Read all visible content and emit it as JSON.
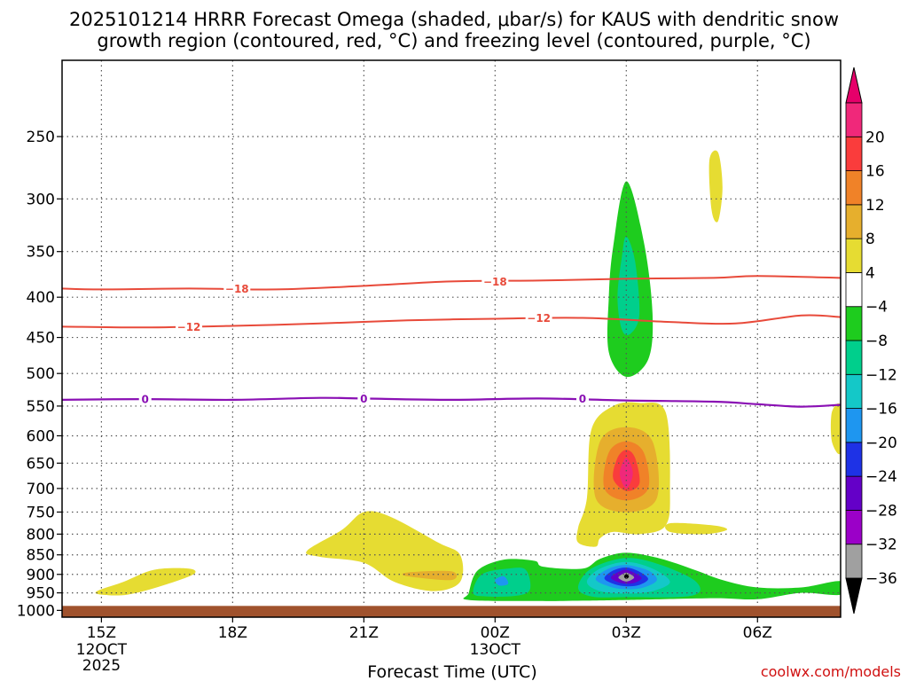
{
  "chart_data": {
    "type": "contour",
    "title_line1": "2025101214 HRRR Forecast Omega (shaded, μbar/s) for KAUS with dendritic snow",
    "title_line2": "growth region (contoured, red, °C) and freezing level (contoured, purple, °C)",
    "xlabel": "Forecast Time (UTC)",
    "credit": "coolwx.com/models",
    "x_ticks": [
      {
        "hour": 15,
        "label": "15Z",
        "sub": [
          "12OCT",
          "2025"
        ]
      },
      {
        "hour": 18,
        "label": "18Z",
        "sub": []
      },
      {
        "hour": 21,
        "label": "21Z",
        "sub": []
      },
      {
        "hour": 24,
        "label": "00Z",
        "sub": [
          "13OCT"
        ]
      },
      {
        "hour": 27,
        "label": "03Z",
        "sub": []
      },
      {
        "hour": 30,
        "label": "06Z",
        "sub": []
      }
    ],
    "xlim": [
      14.1,
      31.9
    ],
    "y_ticks": [
      250,
      300,
      350,
      400,
      450,
      500,
      550,
      600,
      650,
      700,
      750,
      800,
      850,
      900,
      950,
      1000
    ],
    "ylim": [
      1020,
      200
    ],
    "yscale": "log",
    "ground_level_hpa": 987,
    "colorbar": {
      "colors": [
        "#000000",
        "#a0a0a0",
        "#9b00c8",
        "#6400c8",
        "#1e32e6",
        "#1e96f0",
        "#14c8c8",
        "#00cf8c",
        "#1ecc1e",
        "#ffffff",
        "#e6dc32",
        "#e6af2d",
        "#f08228",
        "#fa3c3c",
        "#f0287a",
        "#e6006a"
      ],
      "labels": [
        -36,
        -32,
        -28,
        -24,
        -20,
        -16,
        -12,
        -8,
        -4,
        4,
        8,
        12,
        16,
        20
      ]
    },
    "contours": [
      {
        "name": "temperature",
        "level": -18,
        "color": "#e84a3a",
        "points": [
          [
            14.1,
            390
          ],
          [
            15,
            391
          ],
          [
            17,
            390
          ],
          [
            19,
            391
          ],
          [
            21,
            387
          ],
          [
            23,
            382
          ],
          [
            25,
            381
          ],
          [
            27,
            379
          ],
          [
            29,
            378
          ],
          [
            30,
            376
          ],
          [
            31.9,
            378
          ]
        ],
        "labels": [
          [
            18.1,
            390
          ],
          [
            24,
            382
          ]
        ]
      },
      {
        "name": "temperature",
        "level": -12,
        "color": "#e84a3a",
        "points": [
          [
            14.1,
            436
          ],
          [
            16,
            437
          ],
          [
            18,
            435
          ],
          [
            20,
            432
          ],
          [
            22,
            428
          ],
          [
            24,
            426
          ],
          [
            26,
            425
          ],
          [
            28,
            430
          ],
          [
            29.5,
            432
          ],
          [
            31,
            422
          ],
          [
            31.9,
            424
          ]
        ],
        "labels": [
          [
            17,
            436
          ],
          [
            25,
            425
          ]
        ]
      },
      {
        "name": "freezing level",
        "level": 0,
        "color": "#8a10b4",
        "points": [
          [
            14.1,
            540
          ],
          [
            16,
            539
          ],
          [
            18,
            540
          ],
          [
            20,
            537
          ],
          [
            21,
            538
          ],
          [
            23,
            540
          ],
          [
            25,
            538
          ],
          [
            27,
            541
          ],
          [
            29,
            543
          ],
          [
            30,
            547
          ],
          [
            31,
            551
          ],
          [
            31.9,
            548
          ]
        ],
        "labels": [
          [
            16,
            539
          ],
          [
            21,
            538
          ],
          [
            26,
            538
          ]
        ]
      }
    ],
    "omega_regions": [
      {
        "color": "#e6dc32",
        "points": [
          [
            14.9,
            945
          ],
          [
            15.5,
            920
          ],
          [
            16.2,
            888
          ],
          [
            17.0,
            885
          ],
          [
            17.1,
            900
          ],
          [
            16.4,
            930
          ],
          [
            15.6,
            955
          ],
          [
            15.0,
            955
          ]
        ]
      },
      {
        "color": "#e6dc32",
        "points": [
          [
            19.7,
            840
          ],
          [
            20.5,
            790
          ],
          [
            21.0,
            750
          ],
          [
            21.6,
            760
          ],
          [
            22.7,
            820
          ],
          [
            23.2,
            850
          ],
          [
            23.2,
            920
          ],
          [
            22.6,
            945
          ],
          [
            21.7,
            920
          ],
          [
            21.0,
            870
          ],
          [
            20.0,
            855
          ]
        ]
      },
      {
        "color": "#e6af2d",
        "points": [
          [
            22.0,
            895
          ],
          [
            23.0,
            892
          ],
          [
            23.0,
            915
          ],
          [
            22.0,
            905
          ]
        ]
      },
      {
        "color": "#e6dc32",
        "points": [
          [
            25.9,
            785
          ],
          [
            26.1,
            720
          ],
          [
            26.2,
            590
          ],
          [
            26.7,
            550
          ],
          [
            27.3,
            545
          ],
          [
            27.9,
            560
          ],
          [
            28.0,
            700
          ],
          [
            27.9,
            780
          ],
          [
            27.3,
            800
          ],
          [
            26.7,
            795
          ],
          [
            26.4,
            810
          ],
          [
            26.3,
            830
          ],
          [
            25.9,
            820
          ]
        ]
      },
      {
        "color": "#e6af2d",
        "points": [
          [
            26.3,
            720
          ],
          [
            26.4,
            610
          ],
          [
            27.0,
            585
          ],
          [
            27.6,
            610
          ],
          [
            27.7,
            720
          ],
          [
            27.0,
            750
          ]
        ]
      },
      {
        "color": "#f08228",
        "points": [
          [
            26.5,
            700
          ],
          [
            26.6,
            630
          ],
          [
            27.0,
            610
          ],
          [
            27.4,
            630
          ],
          [
            27.5,
            700
          ],
          [
            27.0,
            725
          ]
        ]
      },
      {
        "color": "#fa3c3c",
        "points": [
          [
            26.7,
            680
          ],
          [
            26.8,
            640
          ],
          [
            27.0,
            625
          ],
          [
            27.2,
            640
          ],
          [
            27.3,
            690
          ],
          [
            27.0,
            705
          ]
        ]
      },
      {
        "color": "#f0287a",
        "points": [
          [
            26.85,
            670
          ],
          [
            27.0,
            640
          ],
          [
            27.15,
            670
          ],
          [
            27.0,
            700
          ]
        ]
      },
      {
        "color": "#e6dc32",
        "points": [
          [
            28.0,
            775
          ],
          [
            29.0,
            780
          ],
          [
            29.3,
            790
          ],
          [
            28.8,
            800
          ],
          [
            28.0,
            795
          ]
        ]
      },
      {
        "color": "#e6dc32",
        "points": [
          [
            28.9,
            268
          ],
          [
            29.1,
            262
          ],
          [
            29.2,
            290
          ],
          [
            29.1,
            320
          ],
          [
            28.95,
            310
          ]
        ]
      },
      {
        "color": "#e6dc32",
        "points": [
          [
            31.7,
            560
          ],
          [
            31.9,
            550
          ],
          [
            31.9,
            630
          ],
          [
            31.7,
            610
          ]
        ]
      },
      {
        "color": "#1ecc1e",
        "points": [
          [
            26.6,
            400
          ],
          [
            26.7,
            345
          ],
          [
            27.0,
            285
          ],
          [
            27.4,
            340
          ],
          [
            27.6,
            420
          ],
          [
            27.5,
            480
          ],
          [
            27.0,
            505
          ],
          [
            26.6,
            470
          ]
        ]
      },
      {
        "color": "#00cf8c",
        "points": [
          [
            26.8,
            400
          ],
          [
            26.9,
            355
          ],
          [
            27.0,
            335
          ],
          [
            27.2,
            360
          ],
          [
            27.3,
            420
          ],
          [
            27.1,
            445
          ],
          [
            26.9,
            440
          ]
        ]
      },
      {
        "color": "#1ecc1e",
        "points": [
          [
            23.4,
            950
          ],
          [
            23.6,
            890
          ],
          [
            24.2,
            862
          ],
          [
            24.9,
            865
          ],
          [
            25.1,
            880
          ],
          [
            26.0,
            885
          ],
          [
            26.4,
            860
          ],
          [
            27.0,
            845
          ],
          [
            27.8,
            860
          ],
          [
            28.6,
            890
          ],
          [
            29.2,
            915
          ],
          [
            30.0,
            935
          ],
          [
            31.0,
            935
          ],
          [
            31.9,
            918
          ],
          [
            31.9,
            955
          ],
          [
            31.0,
            950
          ],
          [
            30.0,
            968
          ],
          [
            29.0,
            965
          ],
          [
            27.0,
            970
          ],
          [
            26.0,
            972
          ],
          [
            25.0,
            973
          ],
          [
            23.4,
            970
          ]
        ]
      },
      {
        "color": "#00cf8c",
        "points": [
          [
            23.5,
            950
          ],
          [
            23.7,
            900
          ],
          [
            24.3,
            885
          ],
          [
            24.7,
            888
          ],
          [
            24.8,
            940
          ],
          [
            24.5,
            958
          ],
          [
            23.8,
            960
          ]
        ]
      },
      {
        "color": "#00cf8c",
        "points": [
          [
            25.9,
            935
          ],
          [
            26.2,
            885
          ],
          [
            27.0,
            858
          ],
          [
            27.8,
            876
          ],
          [
            28.6,
            920
          ],
          [
            28.5,
            958
          ],
          [
            27.0,
            962
          ],
          [
            26.2,
            960
          ]
        ]
      },
      {
        "color": "#14c8c8",
        "points": [
          [
            26.1,
            920
          ],
          [
            26.4,
            885
          ],
          [
            27.0,
            868
          ],
          [
            27.6,
            885
          ],
          [
            28.0,
            920
          ],
          [
            27.6,
            945
          ],
          [
            27.0,
            952
          ],
          [
            26.4,
            945
          ]
        ]
      },
      {
        "color": "#1e96f0",
        "points": [
          [
            24.0,
            915
          ],
          [
            24.2,
            905
          ],
          [
            24.3,
            925
          ],
          [
            24.1,
            930
          ]
        ]
      },
      {
        "color": "#1e96f0",
        "points": [
          [
            26.3,
            912
          ],
          [
            26.6,
            885
          ],
          [
            27.0,
            876
          ],
          [
            27.5,
            890
          ],
          [
            27.7,
            915
          ],
          [
            27.4,
            935
          ],
          [
            27.0,
            940
          ],
          [
            26.6,
            932
          ]
        ]
      },
      {
        "color": "#1e32e6",
        "points": [
          [
            26.5,
            910
          ],
          [
            26.7,
            890
          ],
          [
            27.0,
            882
          ],
          [
            27.3,
            893
          ],
          [
            27.5,
            912
          ],
          [
            27.3,
            928
          ],
          [
            27.0,
            932
          ],
          [
            26.7,
            925
          ]
        ]
      },
      {
        "color": "#6400c8",
        "points": [
          [
            26.65,
            908
          ],
          [
            26.85,
            892
          ],
          [
            27.0,
            888
          ],
          [
            27.2,
            897
          ],
          [
            27.35,
            910
          ],
          [
            27.2,
            922
          ],
          [
            27.0,
            925
          ],
          [
            26.8,
            920
          ]
        ]
      },
      {
        "color": "#a0a0a0",
        "points": [
          [
            26.82,
            908
          ],
          [
            26.95,
            897
          ],
          [
            27.05,
            897
          ],
          [
            27.18,
            908
          ],
          [
            27.05,
            918
          ],
          [
            26.95,
            918
          ]
        ]
      },
      {
        "color": "#000000",
        "points": [
          [
            26.95,
            906
          ],
          [
            27.0,
            899
          ],
          [
            27.06,
            906
          ],
          [
            27.0,
            912
          ]
        ]
      }
    ]
  }
}
